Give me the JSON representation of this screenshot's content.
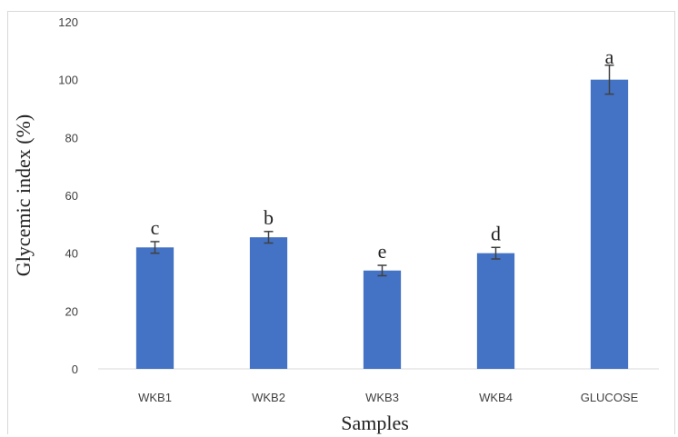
{
  "chart_data": {
    "type": "bar",
    "title": "",
    "xlabel": "Samples",
    "ylabel": "Glycemic index (%)",
    "categories": [
      "WKB1",
      "WKB2",
      "WKB3",
      "WKB4",
      "GLUCOSE"
    ],
    "values": [
      42,
      45.5,
      34,
      40,
      100
    ],
    "error": [
      2,
      2,
      1.8,
      2,
      5
    ],
    "significance_letters": [
      "c",
      "b",
      "e",
      "d",
      "a"
    ],
    "ylim": [
      0,
      120
    ],
    "yticks": [
      "0",
      "20",
      "40",
      "60",
      "80",
      "100",
      "120"
    ],
    "grid": false,
    "bar_color": "#4472c4",
    "error_color": "#404040"
  }
}
